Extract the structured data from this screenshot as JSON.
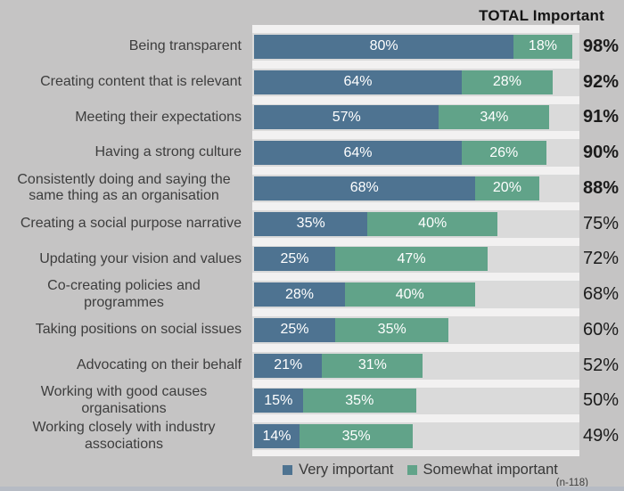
{
  "header": {
    "title": "TOTAL Important"
  },
  "footnote": "(n-118)",
  "colors": {
    "page_background": "#c5c4c4",
    "row_band": "#dadada",
    "row_separator": "#f2f1f1",
    "very_important": "#4e7391",
    "somewhat_important": "#61a389",
    "bar_value_text": "#ffffff",
    "total_text": "#1b1b1b",
    "label_text": "#3d3d3d",
    "bottom_strip": "#b6bbc4"
  },
  "legend": {
    "items": [
      {
        "label": "Very important",
        "color_key": "very_important"
      },
      {
        "label": "Somewhat important",
        "color_key": "somewhat_important"
      }
    ]
  },
  "chart_data": {
    "type": "bar",
    "orientation": "horizontal",
    "stacked": true,
    "title": "TOTAL Important",
    "xlim": [
      0,
      100
    ],
    "grid": false,
    "legend_position": "bottom",
    "categories": [
      "Being transparent",
      "Creating content that is relevant",
      "Meeting their expectations",
      "Having a strong culture",
      "Consistently doing and saying the same thing as an organisation",
      "Creating a social purpose narrative",
      "Updating your vision and values",
      "Co-creating policies and programmes",
      "Taking positions on social issues",
      "Advocating on their behalf",
      "Working with good causes organisations",
      "Working closely with industry associations"
    ],
    "series": [
      {
        "name": "Very important",
        "values": [
          80,
          64,
          57,
          64,
          68,
          35,
          25,
          28,
          25,
          21,
          15,
          14
        ]
      },
      {
        "name": "Somewhat important",
        "values": [
          18,
          28,
          34,
          26,
          20,
          40,
          47,
          40,
          35,
          31,
          35,
          35
        ]
      }
    ],
    "totals": [
      98,
      92,
      91,
      90,
      88,
      75,
      72,
      68,
      60,
      52,
      50,
      49
    ],
    "totals_bold": [
      true,
      true,
      true,
      true,
      true,
      false,
      false,
      false,
      false,
      false,
      false,
      false
    ],
    "sample_note": "(n-118)"
  }
}
